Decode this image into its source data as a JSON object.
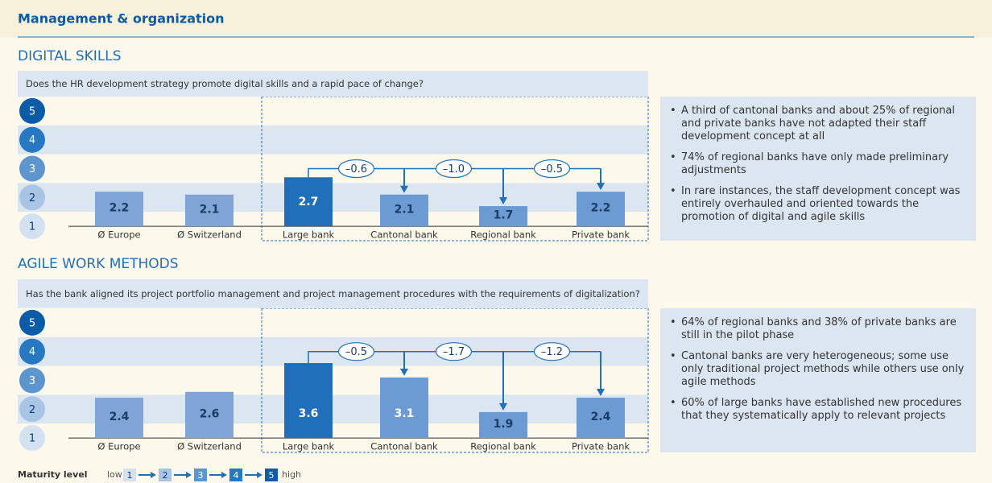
{
  "header": {
    "title": "Management & organization"
  },
  "chart_data": [
    {
      "type": "bar",
      "title": "DIGITAL SKILLS",
      "subtitle": "Does the HR development strategy promote digital skills and a rapid pace of change?",
      "categories": [
        "Ø Europe",
        "Ø Switzerland",
        "Large bank",
        "Cantonal bank",
        "Regional bank",
        "Private bank"
      ],
      "values": [
        2.2,
        2.1,
        2.7,
        2.1,
        1.7,
        2.2
      ],
      "colors": [
        "#7ea5d6",
        "#7ea5d6",
        "#1f6fba",
        "#6b9bd2",
        "#6b9bd2",
        "#6b9bd2"
      ],
      "ylim": [
        1,
        5
      ],
      "yticks": [
        1,
        2,
        3,
        4,
        5
      ],
      "ytick_colors": [
        "#d3e1f1",
        "#a9c5e6",
        "#5d95cf",
        "#2877c1",
        "#0c5ba6"
      ],
      "differences": [
        {
          "value": -0.6,
          "label": "–0.6"
        },
        {
          "value": -1.0,
          "label": "–1.0"
        },
        {
          "value": -0.5,
          "label": "–0.5"
        }
      ],
      "notes": [
        "A third of cantonal banks and about 25% of regional and private banks have not adapted their staff development concept at all",
        "74% of regional banks have only made preliminary adjustments",
        "In rare instances, the staff development concept was entirely overhauled and oriented towards the promotion of digital and agile skills"
      ]
    },
    {
      "type": "bar",
      "title": "AGILE WORK METHODS",
      "subtitle": "Has the bank aligned its project portfolio management and project management procedures with the requirements of digitalization?",
      "categories": [
        "Ø Europe",
        "Ø Switzerland",
        "Large bank",
        "Cantonal bank",
        "Regional bank",
        "Private bank"
      ],
      "values": [
        2.4,
        2.6,
        3.6,
        3.1,
        1.9,
        2.4
      ],
      "colors": [
        "#7ea5d6",
        "#7ea5d6",
        "#1f6fba",
        "#6b9bd2",
        "#6b9bd2",
        "#6b9bd2"
      ],
      "ylim": [
        1,
        5
      ],
      "yticks": [
        1,
        2,
        3,
        4,
        5
      ],
      "ytick_colors": [
        "#d3e1f1",
        "#a9c5e6",
        "#5d95cf",
        "#2877c1",
        "#0c5ba6"
      ],
      "differences": [
        {
          "value": -0.5,
          "label": "–0.5"
        },
        {
          "value": -1.7,
          "label": "–1.7"
        },
        {
          "value": -1.2,
          "label": "–1.2"
        }
      ],
      "notes": [
        "64% of regional banks and 38% of private banks are still in the pilot phase",
        "Cantonal banks are very heterogeneous; some use only traditional project methods while others use only agile methods",
        "60% of large banks have established new procedures that they systematically apply to relevant projects"
      ]
    }
  ],
  "legend": {
    "title": "Maturity level",
    "low": "low",
    "high": "high",
    "levels": [
      1,
      2,
      3,
      4,
      5
    ],
    "colors": [
      "#d3e1f1",
      "#a9c5e6",
      "#5d95cf",
      "#2877c1",
      "#0c5ba6"
    ]
  }
}
